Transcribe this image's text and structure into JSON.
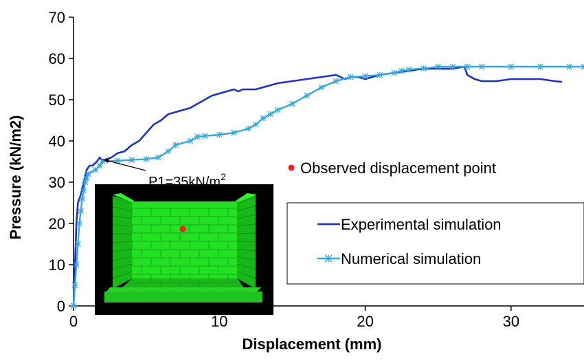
{
  "chart_data": {
    "type": "line",
    "title": "",
    "xlabel": "Displacement (mm)",
    "ylabel": "Pressure (kN/m2)",
    "xlim": [
      0,
      35
    ],
    "ylim": [
      0,
      70
    ],
    "x_ticks": [
      0,
      10,
      20,
      30
    ],
    "y_ticks": [
      0,
      10,
      20,
      30,
      40,
      50,
      60,
      70
    ],
    "grid": false,
    "legend_position": "right",
    "series": [
      {
        "name": "Experimental simulation",
        "color": "#1a2fd6",
        "marker": "none",
        "x": [
          0,
          0.1,
          0.2,
          0.3,
          0.5,
          0.7,
          0.9,
          1.1,
          1.3,
          1.6,
          1.8,
          2.0,
          2.2,
          2.6,
          3.0,
          3.5,
          4.0,
          4.5,
          5.0,
          5.5,
          6.0,
          6.5,
          7.0,
          7.5,
          8.0,
          8.5,
          9.0,
          9.5,
          10.0,
          10.5,
          11.0,
          11.3,
          11.6,
          12.0,
          12.5,
          13.0,
          13.5,
          14.0,
          15.0,
          16.0,
          17.0,
          18.0,
          18.3,
          18.6,
          19.0,
          19.5,
          20.0,
          20.5,
          21.0,
          22.0,
          23.0,
          24.0,
          25.0,
          26.0,
          26.8,
          27.0,
          27.5,
          28.0,
          29.0,
          30.0,
          31.0,
          32.0,
          33.0,
          33.5
        ],
        "values": [
          0,
          10,
          20,
          25,
          27,
          30,
          33,
          34,
          34,
          35,
          36,
          35,
          35.5,
          36,
          37,
          37.5,
          39,
          40,
          42,
          44,
          45,
          46.5,
          47,
          47.5,
          48,
          49,
          50,
          51,
          51.5,
          52,
          52.5,
          52,
          52.5,
          52.5,
          52.5,
          53,
          53.5,
          54,
          54.5,
          55,
          55.5,
          56,
          55.5,
          55,
          55.5,
          55.5,
          55,
          55.5,
          56,
          56.5,
          57,
          57.5,
          57.5,
          57.5,
          58,
          56,
          55,
          54.5,
          54.5,
          55,
          55,
          55,
          54.5,
          54.3
        ]
      },
      {
        "name": "Numerical simulation",
        "color": "#33a8e0",
        "marker": "asterisk",
        "x": [
          0,
          0.1,
          0.2,
          0.3,
          0.4,
          0.5,
          0.6,
          0.7,
          0.8,
          0.9,
          1.0,
          1.5,
          1.8,
          2.0,
          3.0,
          4.0,
          5.0,
          5.8,
          6.5,
          7.0,
          8.0,
          8.5,
          9.0,
          10.0,
          11.0,
          12.0,
          12.5,
          13.0,
          13.5,
          14.0,
          15.0,
          16.0,
          17.0,
          18.0,
          19.0,
          20.0,
          21.0,
          22.0,
          22.5,
          23.0,
          24.0,
          25.0,
          26.0,
          27.0,
          28.0,
          30.0,
          32.0,
          34.0,
          35.0
        ],
        "values": [
          0,
          5,
          10,
          15,
          20,
          23,
          26,
          28,
          30,
          31,
          32,
          33,
          34,
          35,
          35.2,
          35.4,
          35.6,
          36,
          37.5,
          39,
          40,
          41,
          41.2,
          41.5,
          42,
          43,
          44,
          45.5,
          46.5,
          47.5,
          49,
          51,
          53,
          54.5,
          55.5,
          55.7,
          56,
          56.5,
          57,
          57.3,
          57.6,
          58,
          58,
          58,
          58,
          58,
          58,
          58,
          58
        ]
      }
    ],
    "annotations": {
      "p1_text": "P1=35kN/m",
      "p1_superscript": "2",
      "p1_point": [
        1.8,
        35
      ],
      "observed_label": "Observed displacement point",
      "observed_marker_color": "#ff0000"
    }
  }
}
